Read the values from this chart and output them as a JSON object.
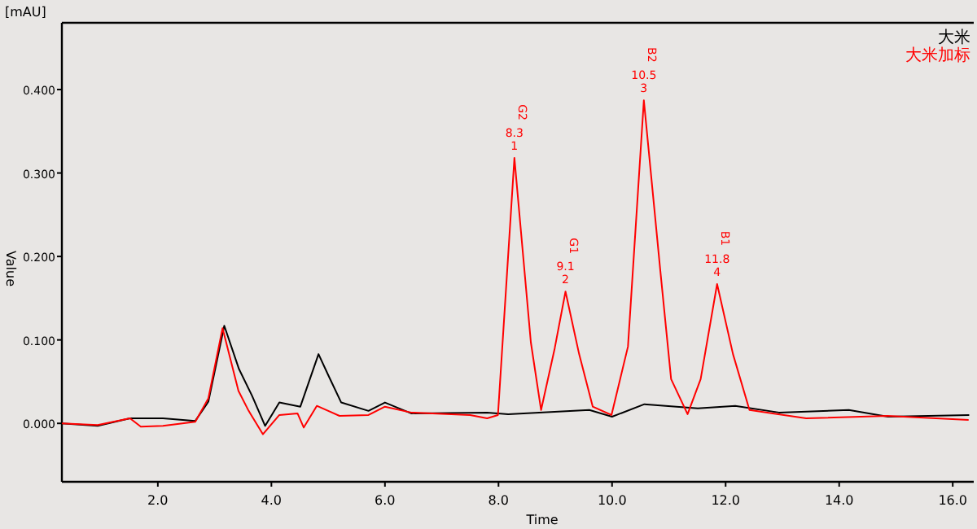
{
  "chart_data": {
    "type": "line",
    "xlabel": "Time",
    "ylabel": "Value",
    "legend": "top right",
    "grid": false,
    "marker": "none",
    "line_style": "solid",
    "xlim": [
      0.31,
      16.37
    ],
    "ylim": [
      -0.07,
      0.48
    ],
    "xticks": [
      {
        "value": 2,
        "label": "2.0"
      },
      {
        "value": 4,
        "label": "4.0"
      },
      {
        "value": 6,
        "label": "6.0"
      },
      {
        "value": 8,
        "label": "8.0"
      },
      {
        "value": 10,
        "label": "10.0"
      },
      {
        "value": 12,
        "label": "12.0"
      },
      {
        "value": 14,
        "label": "14.0"
      },
      {
        "value": 16,
        "label": "16.0"
      }
    ],
    "yticks": [
      {
        "value": 0,
        "label": "0.000"
      },
      {
        "value": 0.1,
        "label": "0.100"
      },
      {
        "value": 0.2,
        "label": "0.200"
      },
      {
        "value": 0.3,
        "label": "0.300"
      },
      {
        "value": 0.4,
        "label": "0.400"
      }
    ],
    "series": [
      {
        "name": "大米",
        "color": "#000000",
        "x": [
          0.31,
          0.94,
          1.51,
          2.09,
          2.66,
          2.89,
          3.17,
          3.43,
          3.66,
          3.89,
          4.14,
          4.51,
          4.83,
          5.0,
          5.23,
          5.71,
          6.0,
          6.46,
          7.8,
          8.17,
          9.6,
          10.0,
          10.57,
          11.51,
          12.17,
          12.94,
          14.17,
          14.86,
          16.29
        ],
        "values": [
          0.0,
          -0.003,
          0.006,
          0.006,
          0.003,
          0.026,
          0.117,
          0.065,
          0.033,
          -0.003,
          0.025,
          0.02,
          0.083,
          0.058,
          0.025,
          0.015,
          0.025,
          0.012,
          0.013,
          0.011,
          0.016,
          0.008,
          0.023,
          0.018,
          0.021,
          0.013,
          0.016,
          0.008,
          0.01
        ]
      },
      {
        "name": "大米加标",
        "color": "#ff0000",
        "x": [
          0.31,
          0.94,
          1.51,
          1.7,
          2.09,
          2.66,
          2.89,
          3.14,
          3.42,
          3.6,
          3.85,
          4.14,
          4.46,
          4.57,
          4.8,
          5.2,
          5.71,
          6.0,
          6.46,
          7.5,
          7.8,
          7.99,
          8.28,
          8.57,
          8.75,
          8.99,
          9.18,
          9.42,
          9.66,
          9.99,
          10.28,
          10.56,
          10.85,
          11.04,
          11.33,
          11.56,
          11.85,
          12.13,
          12.42,
          13.42,
          14.85,
          16.28
        ],
        "values": [
          0.0,
          -0.002,
          0.006,
          -0.004,
          -0.003,
          0.002,
          0.03,
          0.114,
          0.039,
          0.015,
          -0.013,
          0.01,
          0.012,
          -0.005,
          0.021,
          0.009,
          0.01,
          0.02,
          0.013,
          0.01,
          0.006,
          0.01,
          0.318,
          0.097,
          0.016,
          0.09,
          0.158,
          0.083,
          0.02,
          0.01,
          0.092,
          0.387,
          0.183,
          0.053,
          0.011,
          0.053,
          0.167,
          0.083,
          0.016,
          0.006,
          0.009,
          0.004
        ]
      }
    ],
    "annotations": [
      "[mAU]",
      "G2",
      {
        "text": "8.3",
        "x": 8.28,
        "y": 0.318
      },
      {
        "text": "1",
        "x": 8.28,
        "y": 0.318
      },
      "G1",
      {
        "text": "9.1",
        "x": 9.18,
        "y": 0.158
      },
      {
        "text": "2",
        "x": 9.18,
        "y": 0.158
      },
      "B2",
      {
        "text": "10.5",
        "x": 10.56,
        "y": 0.387
      },
      {
        "text": "3",
        "x": 10.56,
        "y": 0.387
      },
      "B1",
      {
        "text": "11.8",
        "x": 11.85,
        "y": 0.167
      },
      {
        "text": "4",
        "x": 11.85,
        "y": 0.167
      }
    ]
  }
}
